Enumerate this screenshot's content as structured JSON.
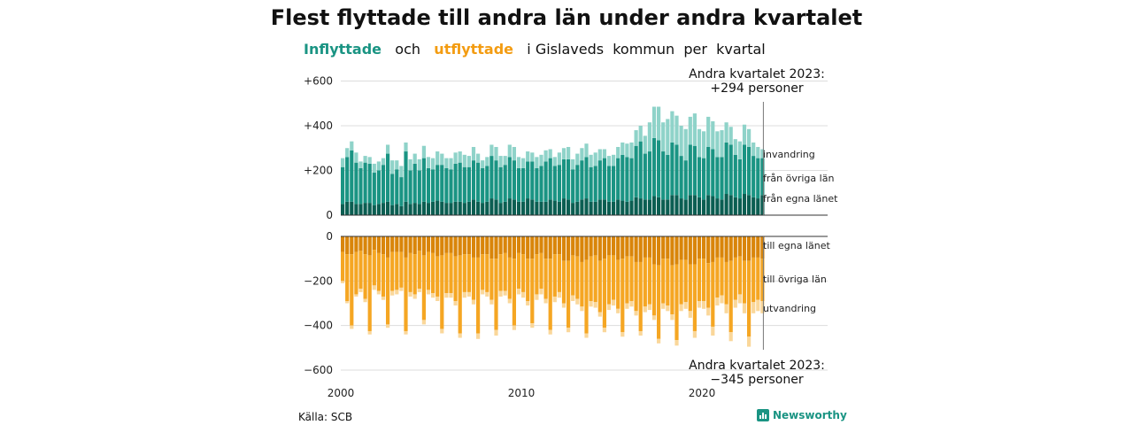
{
  "title": "Flest flyttade till andra län under andra kvartalet",
  "subtitle": {
    "in_label": "Inflyttade",
    "and": "och",
    "out_label": "utflyttade",
    "rest": "i Gislaveds  kommun  per  kvartal"
  },
  "source": "Källa: SCB",
  "brand": "Newsworthy",
  "colors": {
    "in_egna": "#0b5e52",
    "in_ovriga": "#1a9483",
    "in_invandring": "#8fd3c9",
    "out_egna": "#d9850a",
    "out_ovriga": "#f5a623",
    "out_utvandring": "#fad79a"
  },
  "chart_data": {
    "type": "bar",
    "stacked": true,
    "x_start_year": 2000,
    "periods_per_year": 4,
    "n_periods": 94,
    "x_tick_labels": [
      "2000",
      "2010",
      "2020"
    ],
    "y_range": [
      -600,
      600
    ],
    "y_tick_labels": [
      "+600",
      "+400",
      "+200",
      "0",
      "−200",
      "−400",
      "−600"
    ],
    "annotations": {
      "top": [
        "Andra kvartalet 2023:",
        "+294 personer"
      ],
      "bottom": [
        "Andra kvartalet 2023:",
        "−345 personer"
      ]
    },
    "series_labels_in": [
      "invandring",
      "från övriga län",
      "från egna länet"
    ],
    "series_labels_out": [
      "till egna länet",
      "till övriga län",
      "utvandring"
    ],
    "inflow": {
      "fran_egna_lanet": [
        50,
        60,
        60,
        50,
        50,
        55,
        55,
        45,
        50,
        55,
        60,
        45,
        50,
        40,
        60,
        50,
        55,
        50,
        60,
        55,
        60,
        65,
        60,
        55,
        55,
        60,
        60,
        55,
        60,
        70,
        60,
        55,
        60,
        75,
        70,
        55,
        60,
        75,
        70,
        60,
        60,
        75,
        70,
        60,
        60,
        60,
        70,
        65,
        60,
        75,
        70,
        55,
        60,
        70,
        75,
        60,
        60,
        70,
        70,
        60,
        60,
        70,
        65,
        60,
        65,
        80,
        75,
        70,
        70,
        85,
        80,
        70,
        70,
        90,
        90,
        75,
        70,
        90,
        90,
        80,
        70,
        90,
        85,
        75,
        70,
        95,
        90,
        80,
        75,
        95,
        90,
        80,
        75,
        90
      ],
      "fran_ovriga_lan": [
        165,
        200,
        230,
        185,
        160,
        180,
        175,
        145,
        150,
        170,
        215,
        140,
        155,
        130,
        225,
        150,
        175,
        150,
        195,
        155,
        145,
        160,
        165,
        155,
        150,
        170,
        175,
        160,
        155,
        175,
        175,
        155,
        160,
        190,
        175,
        160,
        165,
        185,
        175,
        150,
        150,
        165,
        170,
        150,
        160,
        180,
        185,
        155,
        165,
        175,
        180,
        150,
        165,
        175,
        185,
        155,
        160,
        175,
        185,
        160,
        160,
        185,
        205,
        200,
        190,
        230,
        255,
        205,
        215,
        260,
        255,
        215,
        200,
        235,
        225,
        190,
        175,
        225,
        220,
        180,
        185,
        215,
        210,
        185,
        190,
        230,
        225,
        190,
        175,
        220,
        215,
        185,
        180,
        165
      ],
      "invandring": [
        40,
        40,
        40,
        45,
        30,
        30,
        30,
        40,
        40,
        30,
        40,
        60,
        40,
        50,
        40,
        50,
        45,
        50,
        55,
        50,
        50,
        60,
        50,
        45,
        50,
        50,
        50,
        55,
        50,
        60,
        40,
        35,
        40,
        50,
        60,
        50,
        40,
        55,
        60,
        50,
        45,
        45,
        40,
        50,
        50,
        50,
        40,
        40,
        55,
        50,
        55,
        45,
        50,
        55,
        60,
        55,
        60,
        50,
        40,
        45,
        50,
        50,
        55,
        60,
        70,
        70,
        70,
        80,
        130,
        140,
        150,
        130,
        160,
        140,
        130,
        135,
        140,
        125,
        145,
        125,
        120,
        135,
        125,
        115,
        120,
        90,
        80,
        70,
        80,
        90,
        80,
        60,
        50,
        40
      ]
    },
    "outflow": {
      "till_egna_lanet": [
        70,
        80,
        80,
        70,
        65,
        80,
        85,
        60,
        75,
        80,
        95,
        70,
        70,
        70,
        95,
        75,
        80,
        65,
        85,
        70,
        75,
        90,
        85,
        75,
        75,
        90,
        85,
        80,
        80,
        95,
        95,
        80,
        80,
        100,
        100,
        80,
        75,
        95,
        100,
        75,
        80,
        100,
        100,
        80,
        75,
        100,
        100,
        80,
        80,
        110,
        110,
        85,
        90,
        115,
        105,
        90,
        85,
        110,
        100,
        85,
        85,
        105,
        100,
        90,
        90,
        115,
        115,
        95,
        95,
        125,
        130,
        100,
        100,
        130,
        125,
        105,
        105,
        125,
        125,
        100,
        100,
        120,
        115,
        95,
        95,
        115,
        110,
        95,
        90,
        110,
        110,
        95,
        95,
        100
      ],
      "till_ovriga_lan": [
        130,
        210,
        320,
        190,
        170,
        200,
        340,
        160,
        170,
        190,
        300,
        175,
        170,
        160,
        330,
        175,
        180,
        170,
        290,
        170,
        180,
        180,
        330,
        180,
        180,
        200,
        350,
        170,
        170,
        190,
        340,
        160,
        170,
        185,
        320,
        165,
        170,
        185,
        300,
        160,
        170,
        190,
        290,
        180,
        160,
        180,
        320,
        190,
        170,
        190,
        300,
        180,
        190,
        200,
        330,
        200,
        210,
        230,
        310,
        220,
        200,
        220,
        330,
        210,
        200,
        220,
        310,
        220,
        210,
        230,
        330,
        200,
        210,
        220,
        340,
        200,
        190,
        210,
        300,
        190,
        190,
        200,
        290,
        180,
        170,
        190,
        320,
        190,
        170,
        190,
        340,
        200,
        190,
        190
      ],
      "utvandring": [
        10,
        10,
        15,
        10,
        15,
        15,
        15,
        20,
        15,
        15,
        15,
        20,
        20,
        15,
        15,
        20,
        20,
        15,
        20,
        20,
        20,
        20,
        20,
        20,
        20,
        20,
        20,
        25,
        20,
        20,
        25,
        20,
        20,
        20,
        25,
        25,
        20,
        20,
        20,
        25,
        25,
        20,
        20,
        25,
        25,
        20,
        20,
        25,
        25,
        20,
        20,
        25,
        25,
        20,
        20,
        25,
        25,
        20,
        20,
        25,
        25,
        20,
        20,
        25,
        25,
        20,
        20,
        25,
        25,
        20,
        20,
        25,
        25,
        25,
        25,
        30,
        30,
        30,
        30,
        30,
        35,
        35,
        40,
        35,
        35,
        40,
        40,
        35,
        40,
        45,
        45,
        50,
        50,
        55
      ]
    }
  }
}
